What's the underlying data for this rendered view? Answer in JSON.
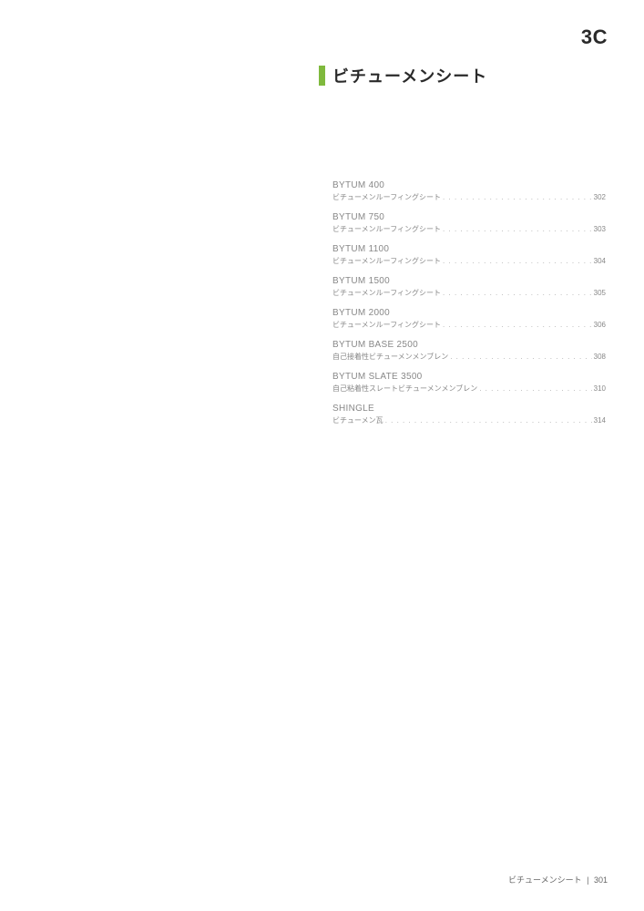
{
  "section": {
    "code": "3C",
    "title": "ビチューメンシート"
  },
  "toc": [
    {
      "title": "BYTUM 400",
      "desc": "ビチューメンルーフィングシート",
      "page": "302"
    },
    {
      "title": "BYTUM 750",
      "desc": "ビチューメンルーフィングシート",
      "page": "303"
    },
    {
      "title": "BYTUM 1100",
      "desc": "ビチューメンルーフィングシート",
      "page": "304"
    },
    {
      "title": "BYTUM 1500",
      "desc": "ビチューメンルーフィングシート",
      "page": "305"
    },
    {
      "title": "BYTUM 2000",
      "desc": "ビチューメンルーフィングシート",
      "page": "306"
    },
    {
      "title": "BYTUM BASE 2500",
      "desc": "自己接着性ビチューメンメンブレン",
      "page": "308"
    },
    {
      "title": "BYTUM SLATE 3500",
      "desc": "自己粘着性スレートビチューメンメンブレン",
      "page": "310"
    },
    {
      "title": "SHINGLE",
      "desc": "ビチューメン瓦",
      "page": "314"
    }
  ],
  "footer": {
    "category": "ビチューメンシート",
    "separator": "|",
    "page": "301"
  },
  "colors": {
    "accent": "#7fb93d",
    "text_dark": "#2a2a2a",
    "text_light": "#888888",
    "background": "#ffffff"
  }
}
